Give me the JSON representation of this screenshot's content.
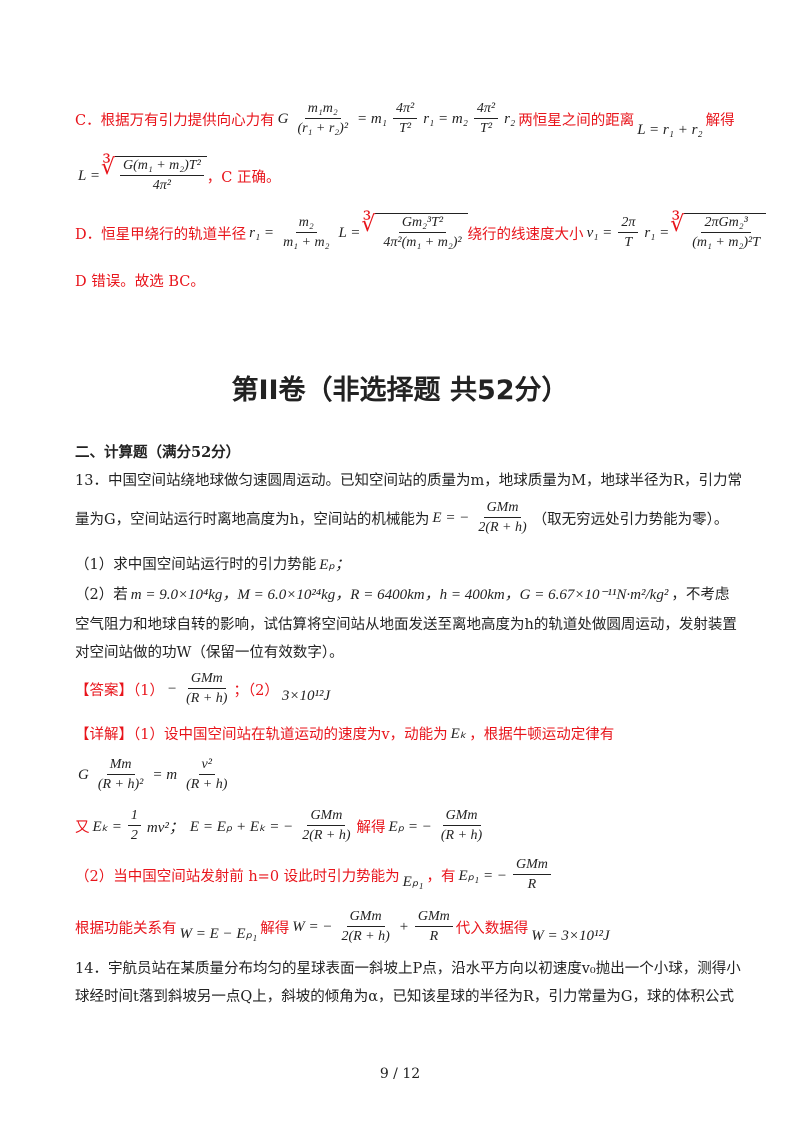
{
  "optC": {
    "t1": "C．根据万有引力提供向心力有",
    "f1": "G",
    "f1n": "m₁m₂",
    "f1d": "(r₁ + r₂)²",
    "f1b": "= m₁",
    "f2n": "4π²",
    "f2d": "T²",
    "f2b": "r₁ = m₂",
    "f3n": "4π²",
    "f3d": "T²",
    "f3b": "r₂",
    "t2": "两恒星之间的距离",
    "eqL": "L = r₁ + r₂",
    "t3": "解得"
  },
  "optC2": {
    "lhs": "L =",
    "rn": "G(m₁ + m₂)T²",
    "rd": "4π²",
    "t": "，C 正确。"
  },
  "optD": {
    "t1": "D．恒星甲绕行的轨道半径",
    "a": "r₁ =",
    "fn": "m₂",
    "fd": "m₁ + m₂",
    "b": "L =",
    "rn": "Gm₂³T²",
    "rd": "4π²(m₁ + m₂)²",
    "t2": "绕行的线速度大小",
    "c": "v₁ =",
    "gn": "2π",
    "gd": "T",
    "d": "r₁ =",
    "sn": "2πGm₂³",
    "sd": "(m₁ + m₂)²T"
  },
  "optD2": "D 错误。故选 BC。",
  "section_title": "第II卷（非选择题 共52分）",
  "part": "二、计算题（满分52分）",
  "q13": {
    "l1": "13．中国空间站绕地球做匀速圆周运动。已知空间站的质量为m，地球质量为M，地球半径为R，引力常",
    "l2a": "量为G，空间站运行时离地高度为h，空间站的机械能为",
    "l2eq": "E = −",
    "l2n": "GMm",
    "l2d": "2(R + h)",
    "l2b": "（取无穷远处引力势能为零）。",
    "p1": "（1）求中国空间站运行时的引力势能",
    "p1m": "Eₚ；",
    "p2a": "（2）若",
    "p2m": "m = 9.0×10⁴kg，M = 6.0×10²⁴kg，R = 6400km，h = 400km，G = 6.67×10⁻¹¹N·m²/kg²",
    "p2b": "，不考虑",
    "l5": "空气阻力和地球自转的影响，试估算将空间站从地面发送至离地高度为h的轨道处做圆周运动，发射装置",
    "l6": "对空间站做的功W（保留一位有效数字）。"
  },
  "answer": {
    "label": "【答案】（1）",
    "neg": "−",
    "n": "GMm",
    "d": "(R + h)",
    "sep": "；（2）",
    "v": "3×10¹²J"
  },
  "detail": {
    "l1": "【详解】（1）设中国空间站在轨道运动的速度为v，动能为",
    "l1m": "Eₖ",
    "l1b": "，根据牛顿运动定律有",
    "e1": "G",
    "e1n": "Mm",
    "e1d": "(R + h)²",
    "e1b": "= m",
    "e1n2": "v²",
    "e1d2": "(R + h)",
    "l3a": "又",
    "l3m": "Eₖ =",
    "l3n": "1",
    "l3d": "2",
    "l3b": "mv²；",
    "l3c": "E = Eₚ + Eₖ = −",
    "l3n2": "GMm",
    "l3d2": "2(R + h)",
    "l3t": "解得",
    "l3e": "Eₚ = −",
    "l3n3": "GMm",
    "l3d3": "(R + h)",
    "l4": "（2）当中国空间站发射前 h=0 设此时引力势能为",
    "l4m": "Eₚ₁",
    "l4b": "，有",
    "l4e": "Eₚ₁ = −",
    "l4n": "GMm",
    "l4d": "R",
    "l5": "根据功能关系有",
    "l5m": "W = E − Eₚ₁",
    "l5t": "解得",
    "l5e": "W = −",
    "l5n": "GMm",
    "l5d": "2(R + h)",
    "l5p": "+",
    "l5n2": "GMm",
    "l5d2": "R",
    "l5t2": "代入数据得",
    "l5r": "W = 3×10¹²J"
  },
  "q14": {
    "l1": "14．宇航员站在某质量分布均匀的星球表面一斜坡上P点，沿水平方向以初速度v₀抛出一个小球，测得小",
    "l2": "球经时间t落到斜坡另一点Q上，斜坡的倾角为α，已知该星球的半径为R，引力常量为G，球的体积公式"
  },
  "page": "9 / 12"
}
